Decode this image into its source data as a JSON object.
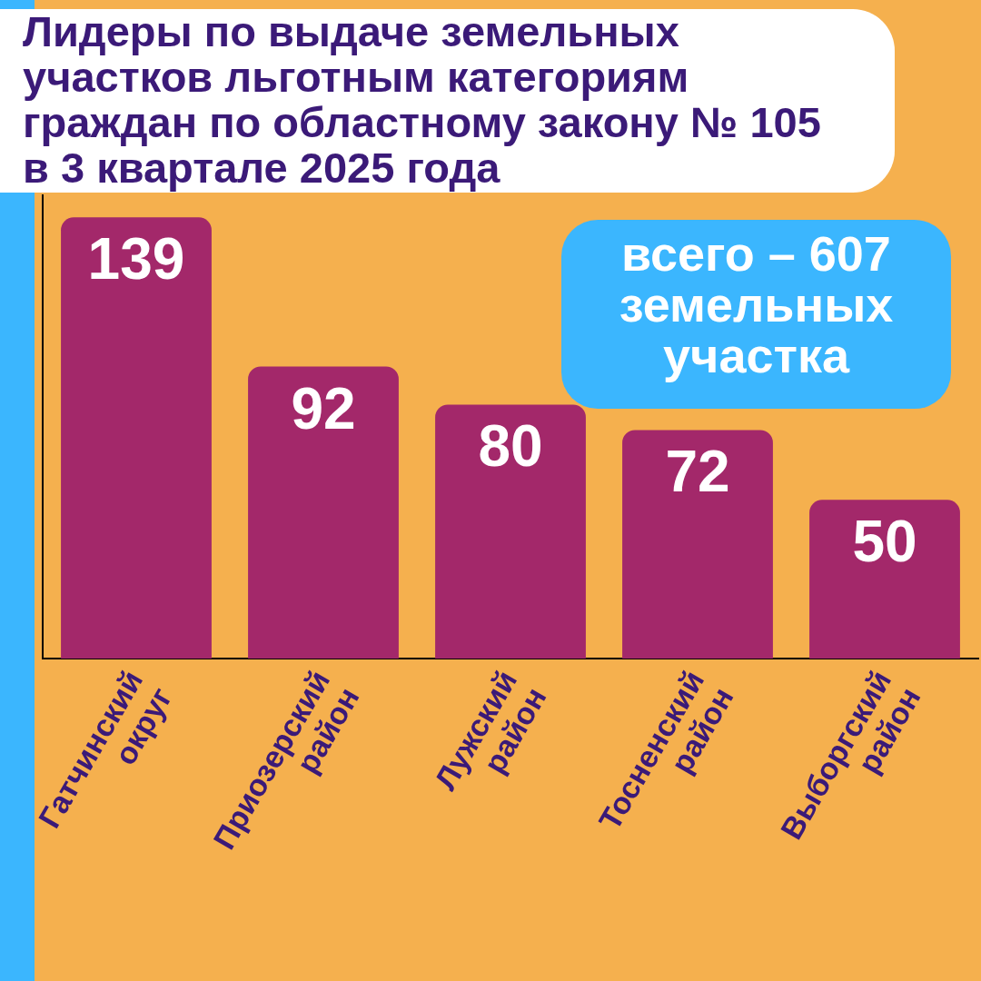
{
  "chart_data": {
    "type": "bar",
    "title": "Лидеры по выдаче земельных участков льготным категориям граждан по областному закону № 105 в 3 квартале 2025 года",
    "categories": [
      "Гатчинский округ",
      "Приозерский район",
      "Лужский район",
      "Тосненский район",
      "Выборгский район"
    ],
    "values": [
      139,
      92,
      80,
      72,
      50
    ],
    "color": "#a3286a",
    "data_labels": true,
    "tick_labels": "x",
    "annotations": [
      "всего – 607 земельных участка"
    ]
  }
}
